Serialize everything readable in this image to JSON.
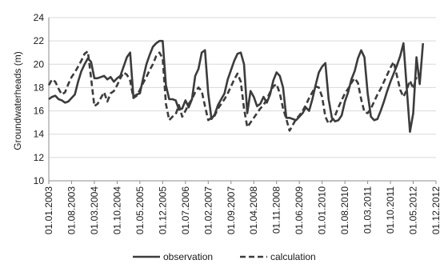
{
  "chart_data": {
    "type": "line",
    "ylabel": "Groundwaterheads (m)",
    "ylim": [
      10,
      24
    ],
    "yticks": [
      10,
      12,
      14,
      16,
      18,
      20,
      22,
      24
    ],
    "grid": true,
    "legend_position": "bottom",
    "x_tick_labels": [
      "01.01.2003",
      "01.08.2003",
      "01.03.2004",
      "01.10.2004",
      "01.05.2005",
      "01.12.2005",
      "01.07.2006",
      "01.02.2007",
      "01.09.2007",
      "01.04.2008",
      "01.11.2008",
      "01.06.2009",
      "01.01.2010",
      "01.08.2010",
      "01.03.2011",
      "01.10.2011",
      "01.05.2012",
      "01.12.2012"
    ],
    "colors": {
      "observation": "#3c3c3c",
      "calculation": "#3c3c3c",
      "grid": "#d9d9d9",
      "axis": "#8c8c8c"
    },
    "series": [
      {
        "name": "observation",
        "style": "solid",
        "points": [
          [
            "2003-01-01",
            17.0
          ],
          [
            "2003-02-01",
            17.2
          ],
          [
            "2003-03-01",
            17.3
          ],
          [
            "2003-04-01",
            17.0
          ],
          [
            "2003-05-01",
            16.9
          ],
          [
            "2003-06-01",
            16.7
          ],
          [
            "2003-07-01",
            16.8
          ],
          [
            "2003-08-01",
            17.1
          ],
          [
            "2003-09-01",
            17.4
          ],
          [
            "2003-10-01",
            18.5
          ],
          [
            "2003-11-01",
            19.4
          ],
          [
            "2003-12-01",
            20.0
          ],
          [
            "2004-01-01",
            20.5
          ],
          [
            "2004-02-01",
            20.2
          ],
          [
            "2004-03-01",
            18.8
          ],
          [
            "2004-04-01",
            18.8
          ],
          [
            "2004-05-01",
            18.9
          ],
          [
            "2004-06-01",
            19.0
          ],
          [
            "2004-07-01",
            18.7
          ],
          [
            "2004-08-01",
            18.9
          ],
          [
            "2004-09-01",
            18.5
          ],
          [
            "2004-10-01",
            18.8
          ],
          [
            "2004-11-01",
            19.0
          ],
          [
            "2004-12-01",
            19.8
          ],
          [
            "2005-01-01",
            20.6
          ],
          [
            "2005-02-01",
            21.0
          ],
          [
            "2005-03-01",
            17.2
          ],
          [
            "2005-04-01",
            17.4
          ],
          [
            "2005-05-01",
            17.5
          ],
          [
            "2005-06-01",
            18.8
          ],
          [
            "2005-07-01",
            20.0
          ],
          [
            "2005-08-01",
            20.8
          ],
          [
            "2005-09-01",
            21.5
          ],
          [
            "2005-10-01",
            21.8
          ],
          [
            "2005-11-01",
            22.0
          ],
          [
            "2005-12-01",
            22.0
          ],
          [
            "2006-01-01",
            18.2
          ],
          [
            "2006-02-01",
            17.0
          ],
          [
            "2006-03-01",
            17.0
          ],
          [
            "2006-04-01",
            16.9
          ],
          [
            "2006-05-01",
            16.1
          ],
          [
            "2006-06-01",
            16.2
          ],
          [
            "2006-07-01",
            16.9
          ],
          [
            "2006-08-01",
            16.3
          ],
          [
            "2006-09-01",
            17.0
          ],
          [
            "2006-10-01",
            19.0
          ],
          [
            "2006-11-01",
            19.6
          ],
          [
            "2006-12-01",
            21.0
          ],
          [
            "2007-01-01",
            21.2
          ],
          [
            "2007-02-01",
            17.5
          ],
          [
            "2007-03-01",
            15.3
          ],
          [
            "2007-04-01",
            15.7
          ],
          [
            "2007-05-01",
            16.5
          ],
          [
            "2007-06-01",
            17.0
          ],
          [
            "2007-07-01",
            17.5
          ],
          [
            "2007-08-01",
            18.7
          ],
          [
            "2007-09-01",
            19.5
          ],
          [
            "2007-10-01",
            20.3
          ],
          [
            "2007-11-01",
            20.9
          ],
          [
            "2007-12-01",
            21.0
          ],
          [
            "2008-01-01",
            20.0
          ],
          [
            "2008-02-01",
            15.8
          ],
          [
            "2008-03-01",
            17.7
          ],
          [
            "2008-04-01",
            17.2
          ],
          [
            "2008-05-01",
            16.4
          ],
          [
            "2008-06-01",
            16.6
          ],
          [
            "2008-07-01",
            17.2
          ],
          [
            "2008-08-01",
            16.7
          ],
          [
            "2008-09-01",
            17.4
          ],
          [
            "2008-10-01",
            18.6
          ],
          [
            "2008-11-01",
            19.3
          ],
          [
            "2008-12-01",
            19.0
          ],
          [
            "2009-01-01",
            18.0
          ],
          [
            "2009-02-01",
            15.4
          ],
          [
            "2009-03-01",
            15.4
          ],
          [
            "2009-04-01",
            15.3
          ],
          [
            "2009-05-01",
            15.2
          ],
          [
            "2009-06-01",
            15.5
          ],
          [
            "2009-07-01",
            15.8
          ],
          [
            "2009-08-01",
            16.3
          ],
          [
            "2009-09-01",
            16.0
          ],
          [
            "2009-10-01",
            17.0
          ],
          [
            "2009-11-01",
            18.2
          ],
          [
            "2009-12-01",
            19.3
          ],
          [
            "2010-01-01",
            19.8
          ],
          [
            "2010-02-01",
            20.1
          ],
          [
            "2010-03-01",
            17.0
          ],
          [
            "2010-04-01",
            15.4
          ],
          [
            "2010-05-01",
            15.1
          ],
          [
            "2010-06-01",
            15.2
          ],
          [
            "2010-07-01",
            15.6
          ],
          [
            "2010-08-01",
            16.8
          ],
          [
            "2010-09-01",
            17.6
          ],
          [
            "2010-10-01",
            18.7
          ],
          [
            "2010-11-01",
            19.4
          ],
          [
            "2010-12-01",
            20.5
          ],
          [
            "2011-01-01",
            21.2
          ],
          [
            "2011-02-01",
            20.6
          ],
          [
            "2011-03-01",
            17.5
          ],
          [
            "2011-04-01",
            15.5
          ],
          [
            "2011-05-01",
            15.2
          ],
          [
            "2011-06-01",
            15.3
          ],
          [
            "2011-07-01",
            16.0
          ],
          [
            "2011-08-01",
            16.8
          ],
          [
            "2011-09-01",
            17.7
          ],
          [
            "2011-10-01",
            18.5
          ],
          [
            "2011-11-01",
            19.2
          ],
          [
            "2011-12-01",
            19.9
          ],
          [
            "2012-01-01",
            20.7
          ],
          [
            "2012-02-01",
            21.8
          ],
          [
            "2012-03-01",
            18.0
          ],
          [
            "2012-04-01",
            14.2
          ],
          [
            "2012-05-01",
            15.8
          ],
          [
            "2012-06-01",
            20.6
          ],
          [
            "2012-07-01",
            18.3
          ],
          [
            "2012-08-01",
            21.8
          ]
        ]
      },
      {
        "name": "calculation",
        "style": "dashed",
        "points": [
          [
            "2003-01-01",
            18.2
          ],
          [
            "2003-02-01",
            18.7
          ],
          [
            "2003-03-01",
            18.5
          ],
          [
            "2003-04-01",
            17.9
          ],
          [
            "2003-05-01",
            17.4
          ],
          [
            "2003-06-01",
            17.6
          ],
          [
            "2003-07-01",
            18.3
          ],
          [
            "2003-08-01",
            18.9
          ],
          [
            "2003-09-01",
            19.3
          ],
          [
            "2003-10-01",
            19.8
          ],
          [
            "2003-11-01",
            20.3
          ],
          [
            "2003-12-01",
            20.9
          ],
          [
            "2004-01-01",
            21.1
          ],
          [
            "2004-02-01",
            18.8
          ],
          [
            "2004-03-01",
            16.4
          ],
          [
            "2004-04-01",
            16.6
          ],
          [
            "2004-05-01",
            17.1
          ],
          [
            "2004-06-01",
            17.6
          ],
          [
            "2004-07-01",
            16.8
          ],
          [
            "2004-08-01",
            17.5
          ],
          [
            "2004-09-01",
            17.7
          ],
          [
            "2004-10-01",
            18.2
          ],
          [
            "2004-11-01",
            18.8
          ],
          [
            "2004-12-01",
            19.3
          ],
          [
            "2005-01-01",
            19.1
          ],
          [
            "2005-02-01",
            18.6
          ],
          [
            "2005-03-01",
            17.1
          ],
          [
            "2005-04-01",
            17.3
          ],
          [
            "2005-05-01",
            17.8
          ],
          [
            "2005-06-01",
            18.4
          ],
          [
            "2005-07-01",
            18.9
          ],
          [
            "2005-08-01",
            19.5
          ],
          [
            "2005-09-01",
            20.0
          ],
          [
            "2005-10-01",
            20.7
          ],
          [
            "2005-11-01",
            21.0
          ],
          [
            "2005-12-01",
            20.5
          ],
          [
            "2006-01-01",
            16.6
          ],
          [
            "2006-02-01",
            15.2
          ],
          [
            "2006-03-01",
            15.5
          ],
          [
            "2006-04-01",
            15.7
          ],
          [
            "2006-05-01",
            16.5
          ],
          [
            "2006-06-01",
            15.5
          ],
          [
            "2006-07-01",
            16.0
          ],
          [
            "2006-08-01",
            16.6
          ],
          [
            "2006-09-01",
            17.0
          ],
          [
            "2006-10-01",
            17.6
          ],
          [
            "2006-11-01",
            18.0
          ],
          [
            "2006-12-01",
            17.7
          ],
          [
            "2007-01-01",
            16.4
          ],
          [
            "2007-02-01",
            15.2
          ],
          [
            "2007-03-01",
            15.4
          ],
          [
            "2007-04-01",
            15.6
          ],
          [
            "2007-05-01",
            16.2
          ],
          [
            "2007-06-01",
            16.6
          ],
          [
            "2007-07-01",
            17.0
          ],
          [
            "2007-08-01",
            17.5
          ],
          [
            "2007-09-01",
            18.1
          ],
          [
            "2007-10-01",
            18.7
          ],
          [
            "2007-11-01",
            19.2
          ],
          [
            "2007-12-01",
            18.5
          ],
          [
            "2008-01-01",
            16.2
          ],
          [
            "2008-02-01",
            14.6
          ],
          [
            "2008-03-01",
            15.0
          ],
          [
            "2008-04-01",
            15.4
          ],
          [
            "2008-05-01",
            15.8
          ],
          [
            "2008-06-01",
            16.2
          ],
          [
            "2008-07-01",
            16.5
          ],
          [
            "2008-08-01",
            17.0
          ],
          [
            "2008-09-01",
            17.6
          ],
          [
            "2008-10-01",
            18.1
          ],
          [
            "2008-11-01",
            18.3
          ],
          [
            "2008-12-01",
            17.5
          ],
          [
            "2009-01-01",
            16.2
          ],
          [
            "2009-02-01",
            15.3
          ],
          [
            "2009-03-01",
            14.3
          ],
          [
            "2009-04-01",
            14.8
          ],
          [
            "2009-05-01",
            15.3
          ],
          [
            "2009-06-01",
            15.6
          ],
          [
            "2009-07-01",
            16.0
          ],
          [
            "2009-08-01",
            16.5
          ],
          [
            "2009-09-01",
            17.1
          ],
          [
            "2009-10-01",
            17.6
          ],
          [
            "2009-11-01",
            18.1
          ],
          [
            "2009-12-01",
            18.0
          ],
          [
            "2010-01-01",
            17.2
          ],
          [
            "2010-02-01",
            15.5
          ],
          [
            "2010-03-01",
            14.9
          ],
          [
            "2010-04-01",
            15.2
          ],
          [
            "2010-05-01",
            15.6
          ],
          [
            "2010-06-01",
            16.3
          ],
          [
            "2010-07-01",
            16.9
          ],
          [
            "2010-08-01",
            17.5
          ],
          [
            "2010-09-01",
            17.9
          ],
          [
            "2010-10-01",
            18.4
          ],
          [
            "2010-11-01",
            18.8
          ],
          [
            "2010-12-01",
            18.4
          ],
          [
            "2011-01-01",
            17.0
          ],
          [
            "2011-02-01",
            15.9
          ],
          [
            "2011-03-01",
            15.8
          ],
          [
            "2011-04-01",
            16.2
          ],
          [
            "2011-05-01",
            16.8
          ],
          [
            "2011-06-01",
            17.4
          ],
          [
            "2011-07-01",
            17.9
          ],
          [
            "2011-08-01",
            18.5
          ],
          [
            "2011-09-01",
            19.1
          ],
          [
            "2011-10-01",
            19.7
          ],
          [
            "2011-11-01",
            20.2
          ],
          [
            "2011-12-01",
            19.0
          ],
          [
            "2012-01-01",
            17.8
          ],
          [
            "2012-02-01",
            17.2
          ],
          [
            "2012-03-01",
            17.8
          ],
          [
            "2012-04-01",
            18.6
          ],
          [
            "2012-05-01",
            17.9
          ],
          [
            "2012-06-01",
            18.9
          ]
        ]
      }
    ]
  }
}
